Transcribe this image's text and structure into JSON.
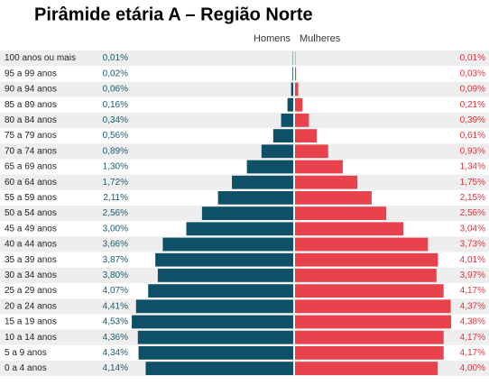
{
  "chart_data": {
    "type": "pyramid",
    "title": "Pirâmide etária A – Região Norte",
    "categories": [
      "100 anos ou mais",
      "95 a 99 anos",
      "90 a 94 anos",
      "85 a 89 anos",
      "80 a 84 anos",
      "75 a 79 anos",
      "70 a 74 anos",
      "65 a 69 anos",
      "60 a 64 anos",
      "55 a 59 anos",
      "50 a 54 anos",
      "45 a 49 anos",
      "40 a 44 anos",
      "35 a 39 anos",
      "30 a 34 anos",
      "25 a 29 anos",
      "20 a 24 anos",
      "15 a 19 anos",
      "10 a 14 anos",
      "5 a 9 anos",
      "0 a 4 anos"
    ],
    "series": [
      {
        "name": "Homens",
        "color": "#0f5068",
        "values": [
          0.01,
          0.02,
          0.06,
          0.16,
          0.34,
          0.56,
          0.89,
          1.3,
          1.72,
          2.11,
          2.56,
          3.0,
          3.66,
          3.87,
          3.8,
          4.07,
          4.41,
          4.53,
          4.36,
          4.34,
          4.14
        ],
        "value_labels": [
          "0,01%",
          "0,02%",
          "0,06%",
          "0,16%",
          "0,34%",
          "0,56%",
          "0,89%",
          "1,30%",
          "1,72%",
          "2,11%",
          "2,56%",
          "3,00%",
          "3,66%",
          "3,87%",
          "3,80%",
          "4,07%",
          "4,41%",
          "4,53%",
          "4,36%",
          "4,34%",
          "4,14%"
        ]
      },
      {
        "name": "Mulheres",
        "color": "#e8434c",
        "values": [
          0.01,
          0.03,
          0.09,
          0.21,
          0.39,
          0.61,
          0.93,
          1.34,
          1.75,
          2.15,
          2.56,
          3.04,
          3.73,
          4.01,
          3.97,
          4.17,
          4.37,
          4.38,
          4.17,
          4.17,
          4.0
        ],
        "value_labels": [
          "0,01%",
          "0,03%",
          "0,09%",
          "0,21%",
          "0,39%",
          "0,61%",
          "0,93%",
          "1,34%",
          "1,75%",
          "2,15%",
          "2,56%",
          "3,04%",
          "3,73%",
          "4,01%",
          "3,97%",
          "4,17%",
          "4,37%",
          "4,38%",
          "4,17%",
          "4,17%",
          "4,00%"
        ]
      }
    ]
  }
}
